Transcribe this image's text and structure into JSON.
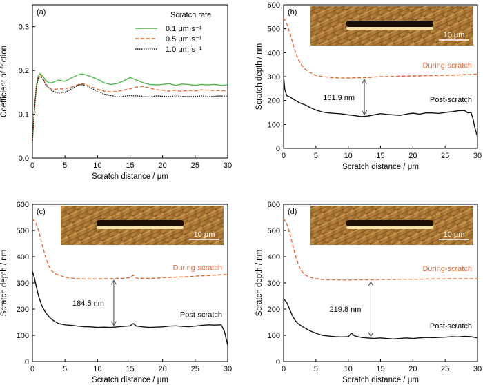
{
  "figure": {
    "panels": [
      "(a)",
      "(b)",
      "(c)",
      "(d)"
    ]
  },
  "colors": {
    "green": "#4cb848",
    "orange": "#e8642c",
    "black": "#111111",
    "annotation_arrow": "#555555",
    "scale_bar": "#ffffff"
  },
  "chart_data": [
    {
      "panel": "(a)",
      "type": "line",
      "xlabel": "Scratch distance / μm",
      "ylabel": "Coefficient of friction",
      "xlim": [
        0,
        30
      ],
      "ylim": [
        0,
        0.35
      ],
      "xticks": [
        0,
        5,
        10,
        15,
        20,
        25,
        30
      ],
      "yticks": [
        0,
        0.1,
        0.2,
        0.3
      ],
      "ytick_labels": [
        "0.0",
        "0.1",
        "0.2",
        "0.3"
      ],
      "legend_title": "Scratch rate",
      "legend_position": "top-right",
      "grid": false,
      "series": [
        {
          "name": "0.1 μm·s⁻¹",
          "color": "#4cb848",
          "dash": "solid",
          "x": [
            0,
            0.3,
            0.6,
            0.9,
            1.2,
            1.6,
            2,
            2.5,
            3,
            3.5,
            4,
            5,
            6,
            7,
            7.5,
            8,
            9,
            10,
            11,
            12,
            13,
            14,
            15,
            16,
            17,
            18,
            19,
            20,
            21,
            22,
            23,
            24,
            25,
            26,
            27,
            28,
            29,
            30
          ],
          "y": [
            0.04,
            0.11,
            0.165,
            0.188,
            0.193,
            0.187,
            0.178,
            0.172,
            0.172,
            0.175,
            0.178,
            0.175,
            0.183,
            0.19,
            0.192,
            0.191,
            0.186,
            0.18,
            0.172,
            0.168,
            0.17,
            0.176,
            0.184,
            0.178,
            0.172,
            0.168,
            0.167,
            0.168,
            0.17,
            0.166,
            0.169,
            0.168,
            0.166,
            0.168,
            0.167,
            0.168,
            0.166,
            0.167
          ]
        },
        {
          "name": "0.5 μm·s⁻¹",
          "color": "#e8642c",
          "dash": "dashed",
          "x": [
            0,
            0.3,
            0.6,
            0.9,
            1.2,
            1.6,
            2,
            2.5,
            3,
            3.5,
            4,
            5,
            6,
            7,
            7.5,
            8,
            9,
            10,
            11,
            12,
            13,
            14,
            15,
            16,
            17,
            18,
            19,
            20,
            21,
            22,
            23,
            24,
            25,
            26,
            27,
            28,
            29,
            30
          ],
          "y": [
            0.04,
            0.11,
            0.162,
            0.185,
            0.19,
            0.183,
            0.17,
            0.161,
            0.157,
            0.157,
            0.158,
            0.158,
            0.162,
            0.167,
            0.17,
            0.169,
            0.163,
            0.157,
            0.153,
            0.151,
            0.152,
            0.155,
            0.158,
            0.162,
            0.164,
            0.16,
            0.156,
            0.155,
            0.153,
            0.155,
            0.152,
            0.155,
            0.153,
            0.156,
            0.155,
            0.154,
            0.154,
            0.153
          ]
        },
        {
          "name": "1.0 μm·s⁻¹",
          "color": "#111111",
          "dash": "dotted",
          "x": [
            0,
            0.3,
            0.6,
            0.9,
            1.2,
            1.6,
            2,
            2.5,
            3,
            3.5,
            4,
            5,
            6,
            7,
            7.5,
            8,
            9,
            10,
            11,
            12,
            13,
            14,
            15,
            16,
            17,
            18,
            19,
            20,
            21,
            22,
            23,
            24,
            25,
            26,
            27,
            28,
            29,
            30
          ],
          "y": [
            0.04,
            0.11,
            0.162,
            0.183,
            0.186,
            0.18,
            0.168,
            0.16,
            0.154,
            0.15,
            0.148,
            0.15,
            0.158,
            0.166,
            0.168,
            0.166,
            0.16,
            0.152,
            0.146,
            0.143,
            0.14,
            0.141,
            0.143,
            0.142,
            0.141,
            0.14,
            0.142,
            0.141,
            0.14,
            0.142,
            0.141,
            0.14,
            0.141,
            0.142,
            0.14,
            0.141,
            0.142,
            0.141
          ]
        }
      ]
    },
    {
      "panel": "(b)",
      "type": "line",
      "xlabel": "Scratch distance / μm",
      "ylabel": "Scratch depth / nm",
      "xlim": [
        0,
        30
      ],
      "ylim": [
        0,
        600
      ],
      "xticks": [
        0,
        5,
        10,
        15,
        20,
        25,
        30
      ],
      "yticks": [
        0,
        100,
        200,
        300,
        400,
        500,
        600
      ],
      "grid": false,
      "inset": {
        "type": "AFM image",
        "scale_bar_label": "10 μm",
        "position": "top-right"
      },
      "annotation": {
        "label": "161.9 nm",
        "x": 12.5,
        "y_from": 132,
        "y_to": 296
      },
      "series": [
        {
          "name": "During-scratch",
          "label_position": "right",
          "color": "#e8642c",
          "dash": "dashed",
          "x": [
            0,
            0.5,
            1,
            1.5,
            2,
            2.5,
            3,
            3.5,
            4,
            5,
            6,
            7,
            8,
            9,
            10,
            11,
            12,
            13,
            14,
            15,
            16,
            17,
            18,
            19,
            20,
            21,
            22,
            23,
            24,
            25,
            26,
            27,
            28,
            29,
            30
          ],
          "y": [
            545,
            520,
            480,
            430,
            390,
            360,
            340,
            327,
            318,
            305,
            300,
            297,
            295,
            294,
            294,
            295,
            296,
            296,
            298,
            300,
            300,
            301,
            302,
            302,
            303,
            303,
            304,
            304,
            305,
            306,
            306,
            307,
            308,
            309,
            310
          ]
        },
        {
          "name": "Post-scratch",
          "label_position": "right",
          "color": "#111111",
          "dash": "solid",
          "x": [
            0,
            0.2,
            0.5,
            1,
            1.5,
            2,
            2.5,
            3,
            3.5,
            4,
            5,
            6,
            7,
            8,
            9,
            10,
            11,
            12,
            13,
            14,
            15,
            16,
            17,
            18,
            19,
            20,
            21,
            22,
            23,
            24,
            25,
            26,
            27,
            28,
            28.5,
            29,
            29.3,
            29.6,
            30
          ],
          "y": [
            300,
            245,
            220,
            215,
            205,
            198,
            190,
            185,
            180,
            172,
            160,
            152,
            148,
            146,
            144,
            140,
            137,
            133,
            135,
            140,
            145,
            142,
            140,
            138,
            143,
            147,
            143,
            148,
            148,
            146,
            150,
            153,
            157,
            158,
            148,
            150,
            125,
            85,
            48
          ]
        }
      ]
    },
    {
      "panel": "(c)",
      "type": "line",
      "xlabel": "Scratch distance / μm",
      "ylabel": "Scratch depth / nm",
      "xlim": [
        0,
        30
      ],
      "ylim": [
        0,
        600
      ],
      "xticks": [
        0,
        5,
        10,
        15,
        20,
        25,
        30
      ],
      "yticks": [
        0,
        100,
        200,
        300,
        400,
        500,
        600
      ],
      "grid": false,
      "inset": {
        "type": "AFM image",
        "scale_bar_label": "10 μm",
        "position": "top-right"
      },
      "annotation": {
        "label": "184.5 nm",
        "x": 12.5,
        "y_from": 130,
        "y_to": 318
      },
      "series": [
        {
          "name": "During-scratch",
          "label_position": "right",
          "color": "#e8642c",
          "dash": "dashed",
          "x": [
            0,
            0.5,
            1,
            1.5,
            2,
            2.5,
            3,
            3.5,
            4,
            5,
            6,
            7,
            8,
            9,
            10,
            11,
            12,
            13,
            14,
            15,
            15.5,
            16,
            17,
            18,
            19,
            20,
            21,
            22,
            23,
            24,
            25,
            26,
            27,
            28,
            29,
            30
          ],
          "y": [
            545,
            530,
            495,
            445,
            400,
            365,
            345,
            335,
            330,
            322,
            318,
            316,
            315,
            315,
            315,
            316,
            316,
            317,
            318,
            320,
            330,
            318,
            317,
            317,
            318,
            320,
            321,
            322,
            323,
            324,
            326,
            327,
            328,
            330,
            331,
            332
          ]
        },
        {
          "name": "Post-scratch",
          "label_position": "right",
          "color": "#111111",
          "dash": "solid",
          "x": [
            0,
            0.3,
            0.6,
            1,
            1.5,
            2,
            2.5,
            3,
            3.5,
            4,
            5,
            6,
            7,
            8,
            9,
            10,
            11,
            12,
            13,
            14,
            15,
            15.5,
            16,
            17,
            18,
            19,
            20,
            21,
            22,
            23,
            24,
            25,
            26,
            27,
            28,
            29,
            29.5,
            30
          ],
          "y": [
            345,
            320,
            285,
            245,
            210,
            188,
            172,
            160,
            152,
            145,
            140,
            138,
            135,
            133,
            132,
            130,
            131,
            130,
            132,
            134,
            136,
            145,
            135,
            132,
            130,
            131,
            132,
            135,
            136,
            134,
            133,
            135,
            138,
            140,
            139,
            140,
            115,
            62
          ]
        }
      ]
    },
    {
      "panel": "(d)",
      "type": "line",
      "xlabel": "Scratch distance / μm",
      "ylabel": "Scratch depth / nm",
      "xlim": [
        0,
        30
      ],
      "ylim": [
        0,
        600
      ],
      "xticks": [
        0,
        5,
        10,
        15,
        20,
        25,
        30
      ],
      "yticks": [
        0,
        100,
        200,
        300,
        400,
        500,
        600
      ],
      "grid": false,
      "inset": {
        "type": "AFM image",
        "scale_bar_label": "10 μm",
        "position": "top-right"
      },
      "annotation": {
        "label": "219.8 nm",
        "x": 13.5,
        "y_from": 88,
        "y_to": 312
      },
      "series": [
        {
          "name": "During-scratch",
          "label_position": "right",
          "color": "#e8642c",
          "dash": "dashed",
          "x": [
            0,
            0.5,
            1,
            1.5,
            2,
            2.5,
            3,
            3.5,
            4,
            5,
            6,
            7,
            8,
            9,
            10,
            11,
            12,
            13,
            14,
            15,
            16,
            17,
            18,
            19,
            20,
            21,
            22,
            23,
            24,
            25,
            26,
            27,
            28,
            29,
            30
          ],
          "y": [
            545,
            525,
            485,
            435,
            390,
            358,
            338,
            328,
            322,
            316,
            313,
            312,
            312,
            311,
            311,
            312,
            312,
            312,
            312,
            313,
            313,
            313,
            314,
            314,
            314,
            314,
            315,
            315,
            315,
            315,
            316,
            316,
            316,
            316,
            316
          ]
        },
        {
          "name": "Post-scratch",
          "label_position": "right",
          "color": "#111111",
          "dash": "solid",
          "x": [
            0,
            0.5,
            1,
            1.5,
            2,
            2.5,
            3,
            3.5,
            4,
            5,
            6,
            7,
            8,
            9,
            10,
            10.5,
            11,
            12,
            13,
            14,
            15,
            16,
            17,
            18,
            19,
            20,
            21,
            22,
            23,
            24,
            25,
            26,
            27,
            28,
            29,
            30
          ],
          "y": [
            240,
            225,
            195,
            168,
            150,
            140,
            132,
            125,
            118,
            108,
            100,
            97,
            95,
            94,
            95,
            108,
            98,
            92,
            90,
            88,
            90,
            88,
            86,
            88,
            90,
            88,
            90,
            92,
            91,
            92,
            93,
            95,
            94,
            96,
            95,
            90
          ]
        }
      ]
    }
  ]
}
